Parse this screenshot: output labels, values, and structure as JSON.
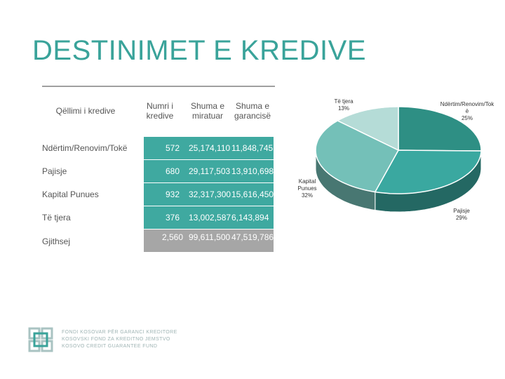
{
  "title": "DESTINIMET E KREDIVE",
  "table": {
    "headers": [
      "Qëllimi i kredive",
      "Numri i kredive",
      "Shuma e miratuar",
      "Shuma e garancisë"
    ],
    "rows": [
      {
        "label": "Ndërtim/Renovim/Tokë",
        "count": "572",
        "approved": "25,174,110",
        "guarantee": "11,848,745"
      },
      {
        "label": "Pajisje",
        "count": "680",
        "approved": "29,117,503",
        "guarantee": "13,910,698"
      },
      {
        "label": "Kapital Punues",
        "count": "932",
        "approved": "32,317,300",
        "guarantee": "15,616,450"
      },
      {
        "label": "Të tjera",
        "count": "376",
        "approved": "13,002,587",
        "guarantee": "6,143,894"
      }
    ],
    "total": {
      "label": "Gjithsej",
      "count": "2,560",
      "approved": "99,611,500",
      "guarantee": "47,519,786"
    }
  },
  "chart_data": {
    "type": "pie",
    "slices": [
      {
        "name": "Ndërtim/Renovim/Tok ë",
        "label": "Ndërtim/Renovim/Tok\në",
        "pct_label": "25%",
        "value": 25,
        "color": "#2e8f84"
      },
      {
        "name": "Pajisje",
        "label": "Pajisje",
        "pct_label": "29%",
        "value": 29,
        "color": "#3aa8a0"
      },
      {
        "name": "Kapital Punues",
        "label": "Kapital\nPunues",
        "pct_label": "32%",
        "value": 32,
        "color": "#74c0b8"
      },
      {
        "name": "Të tjera",
        "label": "Të tjera",
        "pct_label": "13%",
        "value": 13,
        "color": "#b5dcd7"
      }
    ]
  },
  "logo": {
    "icon": "fkgk-logo-icon",
    "lines": [
      "FONDI KOSOVAR PËR GARANCI KREDITORE",
      "KOSOVSKI FOND ZA KREDITNO JEMSTVO",
      "KOSOVO CREDIT GUARANTEE FUND"
    ]
  }
}
